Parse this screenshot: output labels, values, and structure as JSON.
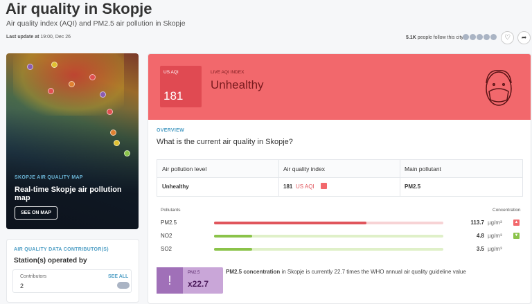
{
  "header": {
    "title": "Air quality in Skopje",
    "subtitle": "Air quality index (AQI) and PM2.5 air pollution in Skopje",
    "update_label": "Last update at",
    "update_time": "19:00, Dec 26",
    "followers_count": "5.1K",
    "followers_text": "people follow this city"
  },
  "map_card": {
    "kicker": "SKOPJE AIR QUALITY MAP",
    "title": "Real-time Skopje air pollution map",
    "button": "SEE ON MAP"
  },
  "contributors_card": {
    "kicker": "AIR QUALITY DATA CONTRIBUTOR(S)",
    "title": "Station(s) operated by",
    "label": "Contributors",
    "count": 2,
    "link": "SEE ALL"
  },
  "aqi_banner": {
    "unit": "US AQI",
    "value": 181,
    "kicker": "LIVE AQI INDEX",
    "level": "Unhealthy"
  },
  "overview": {
    "kicker": "OVERVIEW",
    "question": "What is the current air quality in Skopje?",
    "table": {
      "headers": [
        "Air pollution level",
        "Air quality index",
        "Main pollutant"
      ],
      "row": {
        "level": "Unhealthy",
        "index": 181,
        "index_unit": "US AQI",
        "pollutant": "PM2.5"
      }
    }
  },
  "pollutants": {
    "header": "Pollutants",
    "concentration_header": "Concentration",
    "unit": "µg/m³",
    "rows": [
      {
        "name": "PM2.5",
        "value": 113.7
      },
      {
        "name": "NO2",
        "value": 4.8
      },
      {
        "name": "SO2",
        "value": 3.5
      }
    ]
  },
  "who_note": {
    "pollutant": "PM2.5",
    "factor": "x22.7",
    "bold": "PM2.5 concentration",
    "text": " in Skopje is currently 22.7 times the WHO annual air quality guideline value"
  }
}
